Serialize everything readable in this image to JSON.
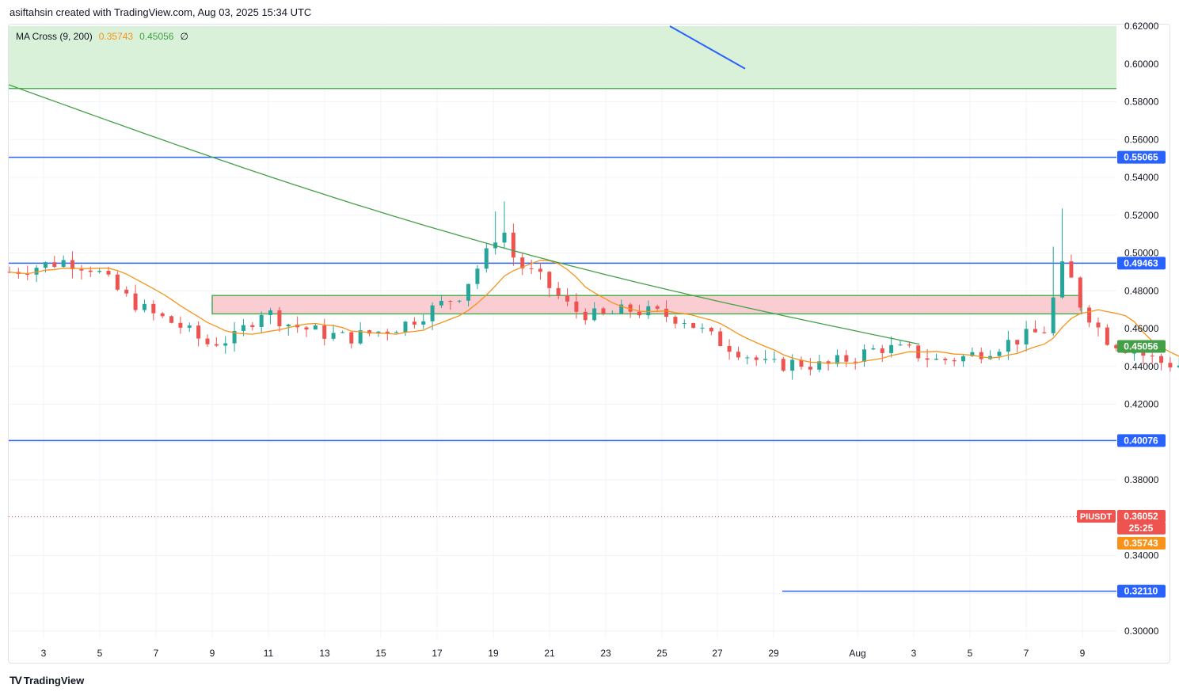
{
  "header": {
    "text": "asiftahsin created with TradingView.com, Aug 03, 2025 15:34 UTC"
  },
  "legend": {
    "name": "MA Cross (9, 200)",
    "fast": "0.35743",
    "slow": "0.45056",
    "suffix": "∅"
  },
  "footer": {
    "brand": "TradingView"
  },
  "colors": {
    "up": "#26a69a",
    "down": "#ef5350",
    "ma_fast": "#f7931a",
    "ma_slow": "#43a047",
    "level": "#2962ff",
    "zone_green": "#d9f0d9",
    "zone_red": "#f9cdd2"
  },
  "chart_data": {
    "type": "candlestick",
    "symbol": "PIUSDT",
    "y_ticks": [
      "0.62000",
      "0.60000",
      "0.58000",
      "0.56000",
      "0.54000",
      "0.52000",
      "0.50000",
      "0.48000",
      "0.46000",
      "0.44000",
      "0.42000",
      "0.40000",
      "0.38000",
      "0.36000",
      "0.34000",
      "0.32000",
      "0.30000"
    ],
    "x_ticks": [
      "3",
      "5",
      "7",
      "9",
      "11",
      "13",
      "15",
      "17",
      "19",
      "21",
      "23",
      "25",
      "27",
      "29",
      "Aug",
      "3",
      "5",
      "7",
      "9"
    ],
    "ylim": [
      0.3,
      0.62
    ],
    "price_labels": [
      {
        "text": "0.55065",
        "value": 0.55065,
        "kind": "level"
      },
      {
        "text": "0.49463",
        "value": 0.49463,
        "kind": "level"
      },
      {
        "text": "0.45056",
        "value": 0.45056,
        "kind": "ma_slow"
      },
      {
        "text": "0.40076",
        "value": 0.40076,
        "kind": "level"
      },
      {
        "text": "0.36052",
        "value": 0.36052,
        "kind": "last"
      },
      {
        "text": "25:25",
        "value": 0.3575,
        "kind": "countdown"
      },
      {
        "text": "0.35743",
        "value": 0.35743,
        "kind": "ma_fast"
      },
      {
        "text": "0.32110",
        "value": 0.3211,
        "kind": "level"
      }
    ],
    "levels": [
      0.55065,
      0.49463,
      0.40076,
      0.3211
    ],
    "resistance_zone": [
      0.587,
      0.62
    ],
    "supply_zone": [
      0.4678,
      0.4775
    ],
    "trend_line": [
      [
        0.62,
        0.5975
      ]
    ],
    "close_series_shape": "ohlc described in drawing script",
    "last_price": 0.36052
  }
}
